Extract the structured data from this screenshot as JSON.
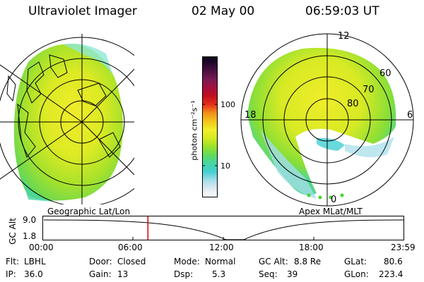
{
  "header": {
    "instrument": "Ultraviolet Imager",
    "date": "02 May 00",
    "time": "06:59:03 UT"
  },
  "left_panel": {
    "label": "Geographic Lat/Lon"
  },
  "right_panel": {
    "label": "Apex MLat/MLT",
    "mlt_labels": {
      "top": "12",
      "left": "18",
      "right": "6",
      "bottom": "0"
    },
    "lat_labels": [
      "60",
      "70",
      "80"
    ]
  },
  "colorbar": {
    "unit": "photon cm⁻²s⁻¹",
    "tick_100": "100",
    "tick_10": "10",
    "colors": [
      "#fdfdfd",
      "#dfe9f1",
      "#a3dde8",
      "#42d0d4",
      "#46d6a4",
      "#60dc5a",
      "#9ae22a",
      "#d4ea22",
      "#f2ee28",
      "#f4c41c",
      "#f2901a",
      "#e8301a",
      "#c20f1e",
      "#a40f3e",
      "#781a52",
      "#4a0e40",
      "#24082e",
      "#0a0218"
    ]
  },
  "altitude_plot": {
    "ylabel": "GC Alt",
    "y_ticks": [
      "9.0",
      "1.8"
    ],
    "x_ticks": [
      "00:00",
      "06:00",
      "12:00",
      "18:00",
      "23:59"
    ],
    "current_time_hours": 6.98
  },
  "status": {
    "filter_label": "Flt:",
    "filter_value": "LBHL",
    "ip_label": "IP:",
    "ip_value": "36.0",
    "door_label": "Door:",
    "door_value": "Closed",
    "gain_label": "Gain:",
    "gain_value": "13",
    "mode_label": "Mode:",
    "mode_value": "Normal",
    "dsp_label": "Dsp:",
    "dsp_value": "5.3",
    "gcalt_label": "GC Alt:",
    "gcalt_value": "8.8 Re",
    "seq_label": "Seq:",
    "seq_value": "39",
    "glat_label": "GLat:",
    "glat_value": "80.6",
    "glon_label": "GLon:",
    "glon_value": "223.4"
  }
}
